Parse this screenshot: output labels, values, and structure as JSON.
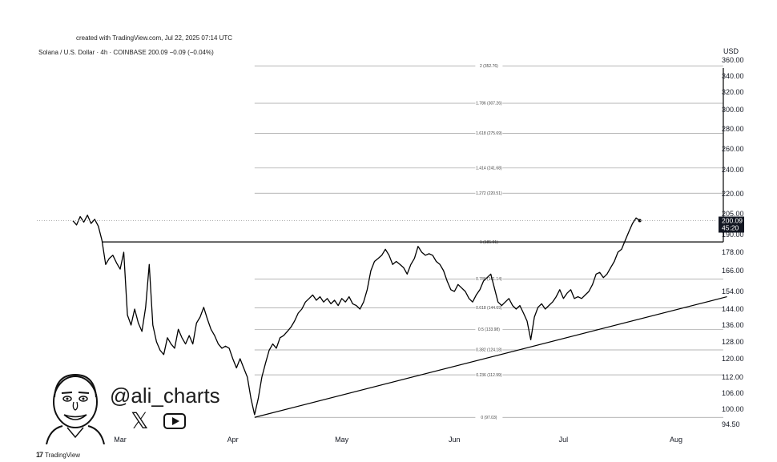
{
  "created_text": "created with TradingView.com, Jul 22, 2025 07:14 UTC",
  "header_text": "Solana / U.S. Dollar · 4h · COINBASE  200.09  −0.09 (−0.04%)",
  "currency": "USD",
  "footer_text": "TradingView",
  "footer_logo": "17",
  "watermark": {
    "handle": "@ali_charts",
    "icons": [
      "avatar-caricature-icon",
      "x-logo-icon",
      "youtube-play-icon"
    ]
  },
  "price_tag": {
    "value": "200.09",
    "countdown": "45:20"
  },
  "chart_data": {
    "type": "line",
    "title": "Solana / U.S. Dollar · 4h · COINBASE",
    "xlabel": "",
    "ylabel": "USD",
    "ylim": [
      92,
      362
    ],
    "x_ticks": [
      "Mar",
      "Apr",
      "May",
      "Jun",
      "Jul",
      "Aug"
    ],
    "y_ticks": [
      "360.00",
      "340.00",
      "320.00",
      "300.00",
      "280.00",
      "260.00",
      "240.00",
      "220.00",
      "205.00",
      "190.00",
      "178.00",
      "166.00",
      "154.00",
      "144.00",
      "136.00",
      "128.00",
      "120.00",
      "112.00",
      "106.00",
      "100.00",
      "94.50"
    ],
    "fib_levels": [
      {
        "ratio": "2",
        "price": 352.76,
        "label": "2 (352.76)"
      },
      {
        "ratio": "1.786",
        "price": 307.26,
        "label": "1.786 (307.26)"
      },
      {
        "ratio": "1.618",
        "price": 275.69,
        "label": "1.618 (275.69)"
      },
      {
        "ratio": "1.414",
        "price": 241.68,
        "label": "1.414 (241.68)"
      },
      {
        "ratio": "1.272",
        "price": 220.51,
        "label": "1.272 (220.51)"
      },
      {
        "ratio": "1",
        "price": 185.01,
        "label": "1 (185.01)"
      },
      {
        "ratio": "0.786",
        "price": 161.14,
        "label": "0.786 (161.14)"
      },
      {
        "ratio": "0.618",
        "price": 144.69,
        "label": "0.618 (144.69)"
      },
      {
        "ratio": "0.5",
        "price": 133.98,
        "label": "0.5 (133.98)"
      },
      {
        "ratio": "0.382",
        "price": 124.18,
        "label": "0.382 (124.18)"
      },
      {
        "ratio": "0.236",
        "price": 112.99,
        "label": "0.236 (112.99)"
      },
      {
        "ratio": "0",
        "price": 97.03,
        "label": "0 (97.03)"
      }
    ],
    "series": [
      {
        "values": [
          [
            "2025-02-16",
            200
          ],
          [
            "2025-02-17",
            197
          ],
          [
            "2025-02-18",
            203
          ],
          [
            "2025-02-19",
            199
          ],
          [
            "2025-02-20",
            204
          ],
          [
            "2025-02-21",
            198
          ],
          [
            "2025-02-22",
            201
          ],
          [
            "2025-02-23",
            196
          ],
          [
            "2025-02-24",
            186
          ],
          [
            "2025-02-25",
            170
          ],
          [
            "2025-02-26",
            174
          ],
          [
            "2025-02-27",
            176
          ],
          [
            "2025-02-28",
            171
          ],
          [
            "2025-03-01",
            167
          ],
          [
            "2025-03-02",
            178
          ],
          [
            "2025-03-03",
            141
          ],
          [
            "2025-03-04",
            136
          ],
          [
            "2025-03-05",
            144
          ],
          [
            "2025-03-06",
            137
          ],
          [
            "2025-03-07",
            133
          ],
          [
            "2025-03-08",
            145
          ],
          [
            "2025-03-09",
            170
          ],
          [
            "2025-03-10",
            136
          ],
          [
            "2025-03-11",
            128
          ],
          [
            "2025-03-12",
            124
          ],
          [
            "2025-03-13",
            122
          ],
          [
            "2025-03-14",
            130
          ],
          [
            "2025-03-15",
            127
          ],
          [
            "2025-03-16",
            125
          ],
          [
            "2025-03-17",
            134
          ],
          [
            "2025-03-18",
            130
          ],
          [
            "2025-03-19",
            127
          ],
          [
            "2025-03-20",
            131
          ],
          [
            "2025-03-21",
            127
          ],
          [
            "2025-03-22",
            137
          ],
          [
            "2025-03-23",
            140
          ],
          [
            "2025-03-24",
            145
          ],
          [
            "2025-03-25",
            139
          ],
          [
            "2025-03-26",
            134
          ],
          [
            "2025-03-27",
            131
          ],
          [
            "2025-03-28",
            127
          ],
          [
            "2025-03-29",
            125
          ],
          [
            "2025-03-30",
            126
          ],
          [
            "2025-03-31",
            125
          ],
          [
            "2025-04-01",
            120
          ],
          [
            "2025-04-02",
            116
          ],
          [
            "2025-04-03",
            120
          ],
          [
            "2025-04-04",
            116
          ],
          [
            "2025-04-05",
            112
          ],
          [
            "2025-04-06",
            104
          ],
          [
            "2025-04-07",
            98
          ],
          [
            "2025-04-08",
            104
          ],
          [
            "2025-04-09",
            112
          ],
          [
            "2025-04-10",
            118
          ],
          [
            "2025-04-11",
            124
          ],
          [
            "2025-04-12",
            127
          ],
          [
            "2025-04-13",
            125
          ],
          [
            "2025-04-14",
            130
          ],
          [
            "2025-04-15",
            131
          ],
          [
            "2025-04-16",
            133
          ],
          [
            "2025-04-17",
            135
          ],
          [
            "2025-04-18",
            138
          ],
          [
            "2025-04-19",
            142
          ],
          [
            "2025-04-20",
            144
          ],
          [
            "2025-04-21",
            148
          ],
          [
            "2025-04-22",
            150
          ],
          [
            "2025-04-23",
            152
          ],
          [
            "2025-04-24",
            149
          ],
          [
            "2025-04-25",
            151
          ],
          [
            "2025-04-26",
            148
          ],
          [
            "2025-04-27",
            150
          ],
          [
            "2025-04-28",
            147
          ],
          [
            "2025-04-29",
            149
          ],
          [
            "2025-04-30",
            146
          ],
          [
            "2025-05-01",
            150
          ],
          [
            "2025-05-02",
            148
          ],
          [
            "2025-05-03",
            151
          ],
          [
            "2025-05-04",
            147
          ],
          [
            "2025-05-05",
            146
          ],
          [
            "2025-05-06",
            144
          ],
          [
            "2025-05-07",
            148
          ],
          [
            "2025-05-08",
            155
          ],
          [
            "2025-05-09",
            166
          ],
          [
            "2025-05-10",
            172
          ],
          [
            "2025-05-11",
            174
          ],
          [
            "2025-05-12",
            176
          ],
          [
            "2025-05-13",
            180
          ],
          [
            "2025-05-14",
            176
          ],
          [
            "2025-05-15",
            170
          ],
          [
            "2025-05-16",
            172
          ],
          [
            "2025-05-17",
            170
          ],
          [
            "2025-05-18",
            168
          ],
          [
            "2025-05-19",
            164
          ],
          [
            "2025-05-20",
            170
          ],
          [
            "2025-05-21",
            174
          ],
          [
            "2025-05-22",
            182
          ],
          [
            "2025-05-23",
            178
          ],
          [
            "2025-05-24",
            176
          ],
          [
            "2025-05-25",
            177
          ],
          [
            "2025-05-26",
            176
          ],
          [
            "2025-05-27",
            172
          ],
          [
            "2025-05-28",
            170
          ],
          [
            "2025-05-29",
            166
          ],
          [
            "2025-05-30",
            160
          ],
          [
            "2025-05-31",
            155
          ],
          [
            "2025-06-01",
            154
          ],
          [
            "2025-06-02",
            158
          ],
          [
            "2025-06-03",
            156
          ],
          [
            "2025-06-04",
            154
          ],
          [
            "2025-06-05",
            150
          ],
          [
            "2025-06-06",
            148
          ],
          [
            "2025-06-07",
            152
          ],
          [
            "2025-06-08",
            155
          ],
          [
            "2025-06-09",
            160
          ],
          [
            "2025-06-10",
            162
          ],
          [
            "2025-06-11",
            164
          ],
          [
            "2025-06-12",
            156
          ],
          [
            "2025-06-13",
            148
          ],
          [
            "2025-06-14",
            146
          ],
          [
            "2025-06-15",
            148
          ],
          [
            "2025-06-16",
            150
          ],
          [
            "2025-06-17",
            146
          ],
          [
            "2025-06-18",
            144
          ],
          [
            "2025-06-19",
            146
          ],
          [
            "2025-06-20",
            142
          ],
          [
            "2025-06-21",
            138
          ],
          [
            "2025-06-22",
            129
          ],
          [
            "2025-06-23",
            140
          ],
          [
            "2025-06-24",
            145
          ],
          [
            "2025-06-25",
            147
          ],
          [
            "2025-06-26",
            144
          ],
          [
            "2025-06-27",
            146
          ],
          [
            "2025-06-28",
            148
          ],
          [
            "2025-06-29",
            151
          ],
          [
            "2025-06-30",
            155
          ],
          [
            "2025-07-01",
            150
          ],
          [
            "2025-07-02",
            153
          ],
          [
            "2025-07-03",
            155
          ],
          [
            "2025-07-04",
            150
          ],
          [
            "2025-07-05",
            151
          ],
          [
            "2025-07-06",
            150
          ],
          [
            "2025-07-07",
            152
          ],
          [
            "2025-07-08",
            154
          ],
          [
            "2025-07-09",
            158
          ],
          [
            "2025-07-10",
            164
          ],
          [
            "2025-07-11",
            165
          ],
          [
            "2025-07-12",
            162
          ],
          [
            "2025-07-13",
            164
          ],
          [
            "2025-07-14",
            168
          ],
          [
            "2025-07-15",
            172
          ],
          [
            "2025-07-16",
            178
          ],
          [
            "2025-07-17",
            180
          ],
          [
            "2025-07-18",
            186
          ],
          [
            "2025-07-19",
            192
          ],
          [
            "2025-07-20",
            198
          ],
          [
            "2025-07-21",
            202
          ],
          [
            "2025-07-22",
            200.09
          ]
        ]
      }
    ],
    "trendlines": [
      {
        "from": [
          "2025-04-07",
          97.03
        ],
        "to": [
          "2025-08-15",
          151
        ]
      },
      {
        "from": [
          "2025-02-24",
          185.01
        ],
        "to": [
          "2025-08-14",
          185.01
        ]
      },
      {
        "from": [
          "2025-08-14",
          185.01
        ],
        "to": [
          "2025-08-14",
          350
        ]
      }
    ],
    "grid": false,
    "legend": "none"
  }
}
